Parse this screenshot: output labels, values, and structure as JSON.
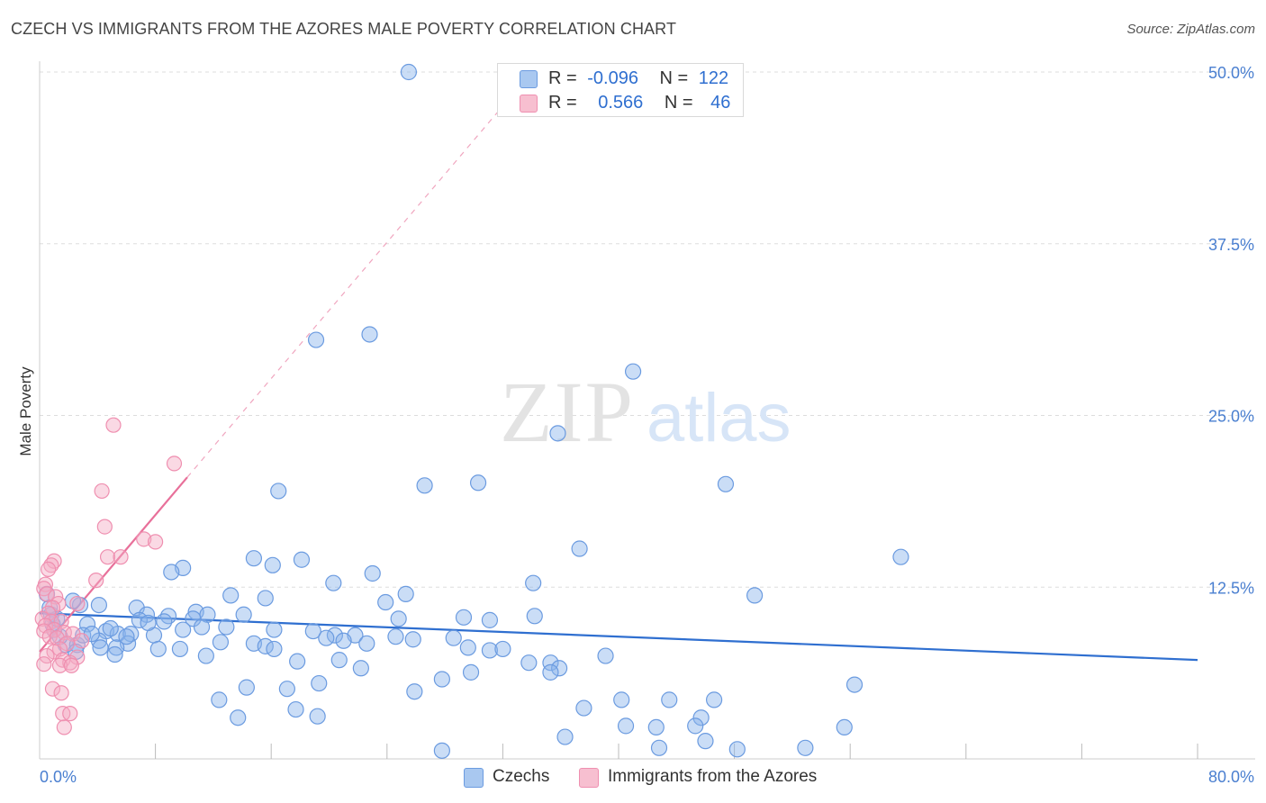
{
  "header": {
    "title": "CZECH VS IMMIGRANTS FROM THE AZORES MALE POVERTY CORRELATION CHART",
    "source": "Source: ZipAtlas.com"
  },
  "watermark": {
    "part1": "ZIP",
    "part2": "atlas"
  },
  "legend": {
    "rows": [
      {
        "r_label": "R =",
        "r_value": "-0.096",
        "n_label": "N =",
        "n_value": "122",
        "color": "#a9c8f0"
      },
      {
        "r_label": "R =",
        "r_value": "0.566",
        "n_label": "N =",
        "n_value": "46",
        "color": "#f7bfd0"
      }
    ]
  },
  "bottom_legend": [
    {
      "label": "Czechs",
      "color": "#a9c8f0"
    },
    {
      "label": "Immigrants from the Azores",
      "color": "#f7bfd0"
    }
  ],
  "colors": {
    "czech_fill": "rgba(138,180,235,0.45)",
    "czech_stroke": "#6b9be0",
    "czech_line": "#2f6fd0",
    "azores_fill": "rgba(245,170,195,0.45)",
    "azores_stroke": "#ef8fb0",
    "azores_line": "#e8709a",
    "grid": "#dddddd",
    "tick_text": "#4a7fd0"
  },
  "chart_data": {
    "type": "scatter",
    "title": "CZECH VS IMMIGRANTS FROM THE AZORES MALE POVERTY CORRELATION CHART",
    "xlabel": "",
    "ylabel": "Male Poverty",
    "xlim": [
      0,
      80
    ],
    "ylim": [
      0,
      50
    ],
    "x_tick_labels": [
      {
        "value": 0,
        "label": "0.0%"
      },
      {
        "value": 80,
        "label": "80.0%"
      }
    ],
    "y_tick_labels": [
      {
        "value": 12.5,
        "label": "12.5%"
      },
      {
        "value": 25,
        "label": "25.0%"
      },
      {
        "value": 37.5,
        "label": "37.5%"
      },
      {
        "value": 50,
        "label": "50.0%"
      }
    ],
    "series": [
      {
        "name": "Czechs",
        "r": -0.096,
        "n": 122,
        "trend": {
          "x0": 0,
          "y0": 10.6,
          "x1": 80,
          "y1": 7.2,
          "style": "solid"
        },
        "points": [
          [
            25.5,
            50.0
          ],
          [
            19.1,
            30.5
          ],
          [
            22.8,
            30.9
          ],
          [
            41.0,
            28.2
          ],
          [
            35.8,
            23.7
          ],
          [
            16.5,
            19.5
          ],
          [
            26.6,
            19.9
          ],
          [
            30.3,
            20.1
          ],
          [
            47.4,
            20.0
          ],
          [
            37.3,
            15.3
          ],
          [
            59.5,
            14.7
          ],
          [
            14.8,
            14.6
          ],
          [
            18.1,
            14.5
          ],
          [
            16.1,
            14.1
          ],
          [
            9.9,
            13.9
          ],
          [
            9.1,
            13.6
          ],
          [
            23.0,
            13.5
          ],
          [
            34.1,
            12.8
          ],
          [
            20.3,
            12.8
          ],
          [
            25.3,
            12.0
          ],
          [
            13.2,
            11.9
          ],
          [
            15.6,
            11.7
          ],
          [
            49.4,
            11.9
          ],
          [
            23.9,
            11.4
          ],
          [
            2.8,
            11.2
          ],
          [
            4.1,
            11.2
          ],
          [
            6.7,
            11.0
          ],
          [
            10.8,
            10.7
          ],
          [
            11.6,
            10.5
          ],
          [
            7.4,
            10.5
          ],
          [
            8.9,
            10.4
          ],
          [
            14.1,
            10.5
          ],
          [
            24.8,
            10.2
          ],
          [
            29.3,
            10.3
          ],
          [
            31.1,
            10.1
          ],
          [
            34.2,
            10.4
          ],
          [
            10.6,
            10.2
          ],
          [
            6.9,
            10.1
          ],
          [
            8.6,
            10.0
          ],
          [
            3.3,
            9.8
          ],
          [
            11.2,
            9.6
          ],
          [
            12.9,
            9.6
          ],
          [
            9.9,
            9.4
          ],
          [
            4.6,
            9.3
          ],
          [
            5.4,
            9.1
          ],
          [
            6.3,
            9.1
          ],
          [
            7.9,
            9.0
          ],
          [
            16.2,
            9.4
          ],
          [
            18.9,
            9.3
          ],
          [
            20.4,
            9.0
          ],
          [
            21.8,
            9.0
          ],
          [
            28.6,
            8.8
          ],
          [
            24.6,
            8.9
          ],
          [
            19.8,
            8.8
          ],
          [
            25.8,
            8.7
          ],
          [
            21.0,
            8.6
          ],
          [
            4.1,
            8.6
          ],
          [
            6.1,
            8.4
          ],
          [
            12.5,
            8.5
          ],
          [
            14.8,
            8.4
          ],
          [
            15.6,
            8.2
          ],
          [
            22.6,
            8.4
          ],
          [
            29.6,
            8.1
          ],
          [
            1.8,
            8.3
          ],
          [
            2.6,
            8.3
          ],
          [
            4.2,
            8.1
          ],
          [
            5.3,
            8.1
          ],
          [
            8.2,
            8.0
          ],
          [
            9.7,
            8.0
          ],
          [
            16.2,
            8.0
          ],
          [
            31.1,
            7.9
          ],
          [
            32.0,
            8.0
          ],
          [
            2.5,
            7.8
          ],
          [
            5.2,
            7.6
          ],
          [
            11.5,
            7.5
          ],
          [
            39.1,
            7.5
          ],
          [
            33.8,
            7.0
          ],
          [
            35.3,
            7.0
          ],
          [
            35.9,
            6.6
          ],
          [
            17.8,
            7.1
          ],
          [
            20.7,
            7.2
          ],
          [
            22.2,
            6.6
          ],
          [
            29.8,
            6.3
          ],
          [
            35.3,
            6.3
          ],
          [
            27.8,
            5.8
          ],
          [
            19.3,
            5.5
          ],
          [
            14.3,
            5.2
          ],
          [
            17.1,
            5.1
          ],
          [
            25.9,
            4.9
          ],
          [
            56.3,
            5.4
          ],
          [
            12.4,
            4.3
          ],
          [
            40.2,
            4.3
          ],
          [
            43.5,
            4.3
          ],
          [
            46.6,
            4.3
          ],
          [
            17.7,
            3.6
          ],
          [
            37.6,
            3.7
          ],
          [
            19.2,
            3.1
          ],
          [
            13.7,
            3.0
          ],
          [
            45.7,
            3.0
          ],
          [
            42.6,
            2.3
          ],
          [
            40.5,
            2.4
          ],
          [
            45.3,
            2.4
          ],
          [
            55.6,
            2.3
          ],
          [
            36.3,
            1.6
          ],
          [
            46.0,
            1.3
          ],
          [
            42.8,
            0.8
          ],
          [
            48.2,
            0.7
          ],
          [
            52.9,
            0.8
          ],
          [
            27.8,
            0.6
          ],
          [
            0.5,
            12.0
          ],
          [
            0.8,
            10.5
          ],
          [
            0.9,
            9.8
          ],
          [
            1.0,
            9.4
          ],
          [
            1.4,
            8.9
          ],
          [
            2.3,
            11.5
          ],
          [
            3.0,
            9.0
          ],
          [
            4.9,
            9.5
          ],
          [
            6.0,
            8.9
          ],
          [
            7.5,
            9.9
          ],
          [
            1.2,
            10.2
          ],
          [
            0.7,
            11.0
          ],
          [
            3.6,
            9.1
          ]
        ]
      },
      {
        "name": "Immigrants from the Azores",
        "r": 0.566,
        "n": 46,
        "trend": {
          "x0": 0,
          "y0": 7.8,
          "x1": 10.2,
          "y1": 20.5,
          "style": "solid",
          "extend_to": {
            "x": 34.0,
            "y": 50.0,
            "style": "dashed"
          }
        },
        "points": [
          [
            5.1,
            24.3
          ],
          [
            9.3,
            21.5
          ],
          [
            4.3,
            19.5
          ],
          [
            4.5,
            16.9
          ],
          [
            7.2,
            16.0
          ],
          [
            8.0,
            15.8
          ],
          [
            4.7,
            14.7
          ],
          [
            5.6,
            14.7
          ],
          [
            1.0,
            14.4
          ],
          [
            0.8,
            14.1
          ],
          [
            0.6,
            13.8
          ],
          [
            3.9,
            13.0
          ],
          [
            0.4,
            12.7
          ],
          [
            0.3,
            12.4
          ],
          [
            0.5,
            12.0
          ],
          [
            1.1,
            11.8
          ],
          [
            2.6,
            11.3
          ],
          [
            1.3,
            11.3
          ],
          [
            0.9,
            11.0
          ],
          [
            0.6,
            10.6
          ],
          [
            0.2,
            10.2
          ],
          [
            0.8,
            10.0
          ],
          [
            1.5,
            10.0
          ],
          [
            0.4,
            9.7
          ],
          [
            1.0,
            9.4
          ],
          [
            1.7,
            9.2
          ],
          [
            0.3,
            9.3
          ],
          [
            2.3,
            9.1
          ],
          [
            0.7,
            8.9
          ],
          [
            1.2,
            8.8
          ],
          [
            1.9,
            8.4
          ],
          [
            1.4,
            8.0
          ],
          [
            1.0,
            7.8
          ],
          [
            0.5,
            7.5
          ],
          [
            2.6,
            7.4
          ],
          [
            1.6,
            7.2
          ],
          [
            2.1,
            7.0
          ],
          [
            1.4,
            6.8
          ],
          [
            2.2,
            6.8
          ],
          [
            0.3,
            6.9
          ],
          [
            0.9,
            5.1
          ],
          [
            1.5,
            4.8
          ],
          [
            1.6,
            3.3
          ],
          [
            2.1,
            3.3
          ],
          [
            1.7,
            2.3
          ],
          [
            2.9,
            8.6
          ]
        ]
      }
    ]
  }
}
